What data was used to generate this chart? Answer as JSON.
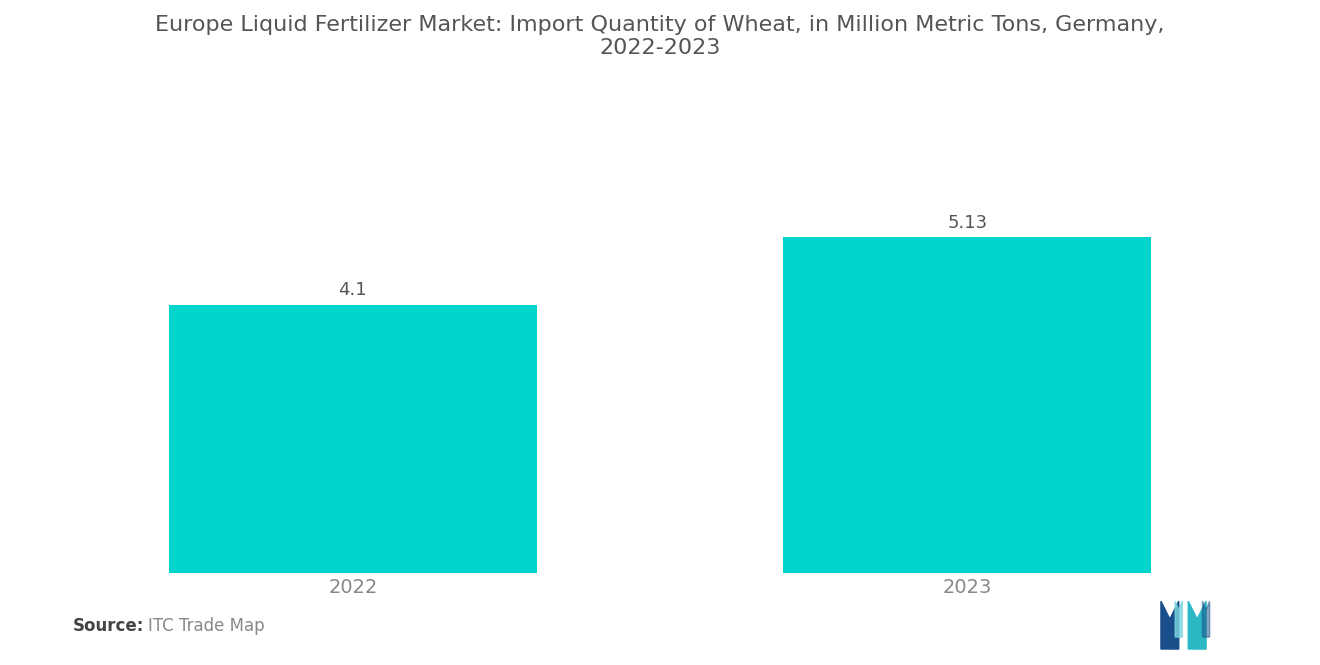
{
  "title": "Europe Liquid Fertilizer Market: Import Quantity of Wheat, in Million Metric Tons, Germany,\n2022-2023",
  "categories": [
    "2022",
    "2023"
  ],
  "values": [
    4.1,
    5.13
  ],
  "bar_color": "#00D4CC",
  "bar_width": 0.6,
  "value_labels": [
    "4.1",
    "5.13"
  ],
  "ylim": [
    0,
    7.5
  ],
  "title_fontsize": 16,
  "tick_fontsize": 14,
  "value_fontsize": 13,
  "background_color": "#ffffff",
  "source_bold": "Source:",
  "title_color": "#555555",
  "tick_color": "#888888",
  "value_color": "#555555",
  "source_color": "#888888",
  "xlim_left": -0.55,
  "xlim_right": 1.55
}
